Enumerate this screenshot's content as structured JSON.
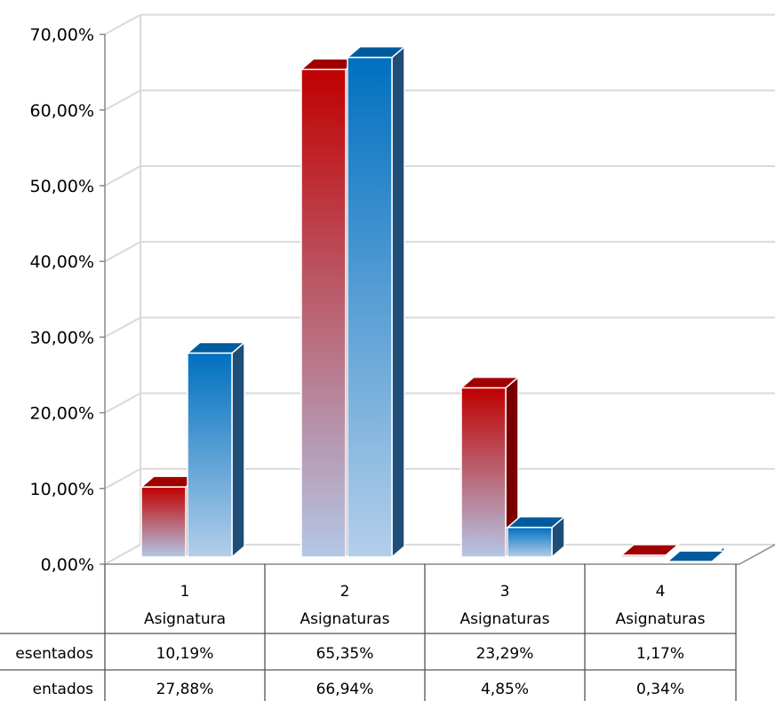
{
  "chart_data": {
    "type": "bar",
    "categories": [
      {
        "line1": "1",
        "line2": "Asignatura"
      },
      {
        "line1": "2",
        "line2": "Asignaturas"
      },
      {
        "line1": "3",
        "line2": "Asignaturas"
      },
      {
        "line1": "4",
        "line2": "Asignaturas"
      }
    ],
    "series": [
      {
        "name": "esentados",
        "values": [
          10.19,
          65.35,
          23.29,
          1.17
        ],
        "labels": [
          "10,19%",
          "65,35%",
          "23,29%",
          "1,17%"
        ],
        "color_top": "#c00000",
        "color_bottom": "#b4c7e7",
        "color_side": "#7a0000",
        "color_cap": "#a00000"
      },
      {
        "name": "entados",
        "values": [
          27.88,
          66.94,
          4.85,
          0.34
        ],
        "labels": [
          "27,88%",
          "66,94%",
          "4,85%",
          "0,34%"
        ],
        "color_top": "#0070c0",
        "color_bottom": "#b4cfea",
        "color_side": "#1f4e79",
        "color_cap": "#005a9e"
      }
    ],
    "y_ticks": [
      "0,00%",
      "10,00%",
      "20,00%",
      "30,00%",
      "40,00%",
      "50,00%",
      "60,00%",
      "70,00%"
    ],
    "ylim": [
      0,
      70
    ],
    "grid": true,
    "legend": "data-table"
  }
}
